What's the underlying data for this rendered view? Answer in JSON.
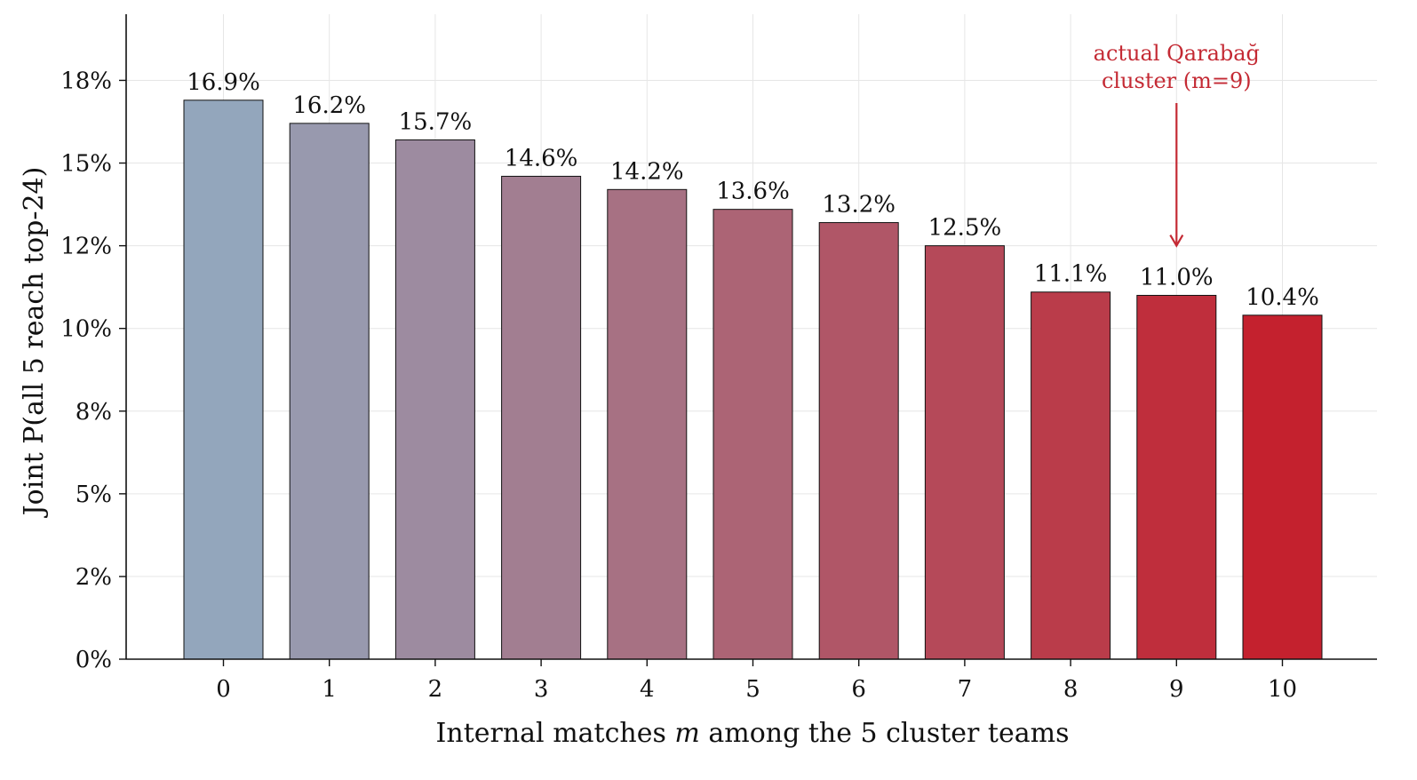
{
  "chart_data": {
    "type": "bar",
    "categories": [
      "0",
      "1",
      "2",
      "3",
      "4",
      "5",
      "6",
      "7",
      "8",
      "9",
      "10"
    ],
    "values": [
      16.9,
      16.2,
      15.7,
      14.6,
      14.2,
      13.6,
      13.2,
      12.5,
      11.1,
      11.0,
      10.4
    ],
    "bar_labels": [
      "16.9%",
      "16.2%",
      "15.7%",
      "14.6%",
      "14.2%",
      "13.6%",
      "13.2%",
      "12.5%",
      "11.1%",
      "11.0%",
      "10.4%"
    ],
    "xlabel_pre": "Internal matches ",
    "xlabel_var": "m",
    "xlabel_post": " among the 5 cluster teams",
    "ylabel": "Joint P(all 5 reach top-24)",
    "ylim": [
      0,
      19.5
    ],
    "yticks": [
      0,
      2.5,
      5,
      7.5,
      10,
      12.5,
      15,
      17.5
    ],
    "ytick_labels": [
      "0%",
      "2%",
      "5%",
      "8%",
      "10%",
      "12%",
      "15%",
      "18%"
    ],
    "grid": true,
    "bar_color_start": "#93a6bc",
    "bar_color_end": "#c4212e",
    "annotation": {
      "lines": [
        "actual Qarabağ",
        "cluster (m=9)"
      ],
      "target_index": 9,
      "arrow_tip_value": 12.5,
      "color": "#c42a34"
    }
  }
}
